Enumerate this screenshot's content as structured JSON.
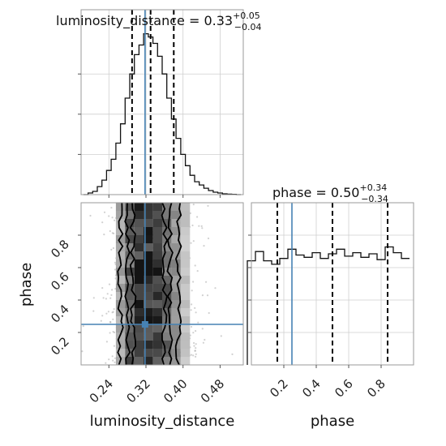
{
  "colors": {
    "truth": "#4682b4",
    "hist": "#111111",
    "quantile": "#000000",
    "frame": "#9a9a9a",
    "grid": "#cfcfcf"
  },
  "chart_data": [
    {
      "type": "area",
      "panel": "luminosity_distance marginal",
      "title": {
        "base": "luminosity_distance = 0.33",
        "sup": "+0.05",
        "sub": "−0.04"
      },
      "xlim": [
        0.18,
        0.53
      ],
      "x_ticks": [
        0.24,
        0.32,
        0.4,
        0.48
      ],
      "bins": [
        0.19,
        0.2,
        0.21,
        0.22,
        0.23,
        0.24,
        0.25,
        0.26,
        0.27,
        0.28,
        0.29,
        0.3,
        0.31,
        0.32,
        0.33,
        0.34,
        0.35,
        0.36,
        0.37,
        0.38,
        0.39,
        0.4,
        0.41,
        0.42,
        0.43,
        0.44,
        0.45,
        0.46,
        0.47,
        0.48,
        0.49,
        0.5,
        0.51,
        0.52
      ],
      "density": [
        0.0,
        0.01,
        0.02,
        0.05,
        0.09,
        0.15,
        0.22,
        0.32,
        0.44,
        0.6,
        0.75,
        0.87,
        0.93,
        1.0,
        0.98,
        0.94,
        0.86,
        0.75,
        0.6,
        0.47,
        0.35,
        0.25,
        0.18,
        0.12,
        0.08,
        0.06,
        0.04,
        0.025,
        0.015,
        0.01,
        0.005,
        0.003,
        0.002,
        0.0
      ],
      "quantiles": [
        0.29,
        0.33,
        0.38
      ],
      "truth": 0.318
    },
    {
      "type": "area",
      "panel": "phase marginal",
      "title": {
        "base": "phase = 0.50",
        "sup": "+0.34",
        "sub": "−0.34"
      },
      "xlim": [
        0.0,
        1.0
      ],
      "x_ticks": [
        0.2,
        0.4,
        0.6,
        0.8
      ],
      "bins": [
        0.0,
        0.05,
        0.1,
        0.15,
        0.2,
        0.25,
        0.3,
        0.35,
        0.4,
        0.45,
        0.5,
        0.55,
        0.6,
        0.65,
        0.7,
        0.75,
        0.8,
        0.85,
        0.9,
        0.95
      ],
      "density": [
        0.9,
        0.98,
        0.9,
        0.87,
        0.92,
        1.0,
        0.95,
        0.93,
        0.97,
        0.92,
        0.96,
        1.0,
        0.94,
        0.97,
        0.93,
        0.96,
        0.91,
        1.02,
        0.97,
        0.92
      ],
      "quantiles": [
        0.16,
        0.5,
        0.84
      ],
      "truth": 0.25
    },
    {
      "type": "heatmap",
      "panel": "luminosity_distance vs phase",
      "xlabel": "luminosity_distance",
      "ylabel": "phase",
      "xlim": [
        0.18,
        0.53
      ],
      "ylim": [
        0.0,
        1.0
      ],
      "x_ticks": [
        0.24,
        0.32,
        0.4,
        0.48
      ],
      "y_ticks": [
        0.2,
        0.4,
        0.6,
        0.8
      ],
      "truth": {
        "x": 0.318,
        "y": 0.25
      },
      "x_centers": [
        0.265,
        0.285,
        0.305,
        0.325,
        0.345,
        0.365,
        0.385,
        0.405
      ],
      "x_weights": [
        0.35,
        0.7,
        0.95,
        1.0,
        0.9,
        0.7,
        0.45,
        0.2
      ]
    }
  ],
  "labels": {
    "xlabel_left": "luminosity_distance",
    "xlabel_right": "phase",
    "ylabel_left": "phase"
  }
}
